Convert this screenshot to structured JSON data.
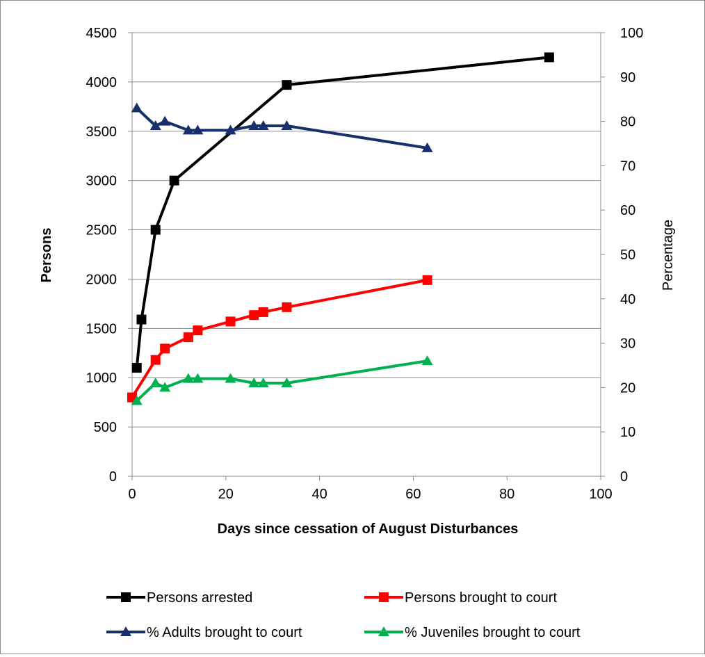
{
  "chart_data": {
    "type": "line",
    "title": "",
    "xlabel": "Days since cessation of August Disturbances",
    "ylabel": "Persons",
    "y2label": "Percentage",
    "xlim": [
      0,
      100
    ],
    "ylim": [
      0,
      4500
    ],
    "y2lim": [
      0,
      100
    ],
    "x_ticks": [
      0,
      20,
      40,
      60,
      80,
      100
    ],
    "y_ticks": [
      0,
      500,
      1000,
      1500,
      2000,
      2500,
      3000,
      3500,
      4000,
      4500
    ],
    "y2_ticks": [
      0,
      10,
      20,
      30,
      40,
      50,
      60,
      70,
      80,
      90,
      100
    ],
    "grid": "horizontal",
    "legend_position": "bottom",
    "series": [
      {
        "name": "Persons arrested",
        "axis": "left",
        "color": "#000000",
        "marker": "square",
        "x": [
          1,
          2,
          5,
          9,
          33,
          89
        ],
        "y": [
          1100,
          1590,
          2500,
          3000,
          3970,
          4250
        ]
      },
      {
        "name": "Persons brought to court",
        "axis": "left",
        "color": "#ff0000",
        "marker": "square",
        "x": [
          0,
          5,
          7,
          12,
          14,
          21,
          26,
          28,
          33,
          63
        ],
        "y": [
          800,
          1180,
          1295,
          1410,
          1480,
          1570,
          1635,
          1665,
          1715,
          1990
        ]
      },
      {
        "name": "% Adults brought to court",
        "axis": "right",
        "color": "#17306b",
        "marker": "triangle",
        "x": [
          1,
          5,
          7,
          12,
          14,
          21,
          26,
          28,
          33,
          63
        ],
        "y": [
          83,
          79,
          80,
          78,
          78,
          78,
          79,
          79,
          79,
          74
        ]
      },
      {
        "name": "% Juveniles brought to court",
        "axis": "right",
        "color": "#00b050",
        "marker": "triangle",
        "x": [
          1,
          5,
          7,
          12,
          14,
          21,
          26,
          28,
          33,
          63
        ],
        "y": [
          17,
          21,
          20,
          22,
          22,
          22,
          21,
          21,
          21,
          26
        ]
      }
    ]
  }
}
